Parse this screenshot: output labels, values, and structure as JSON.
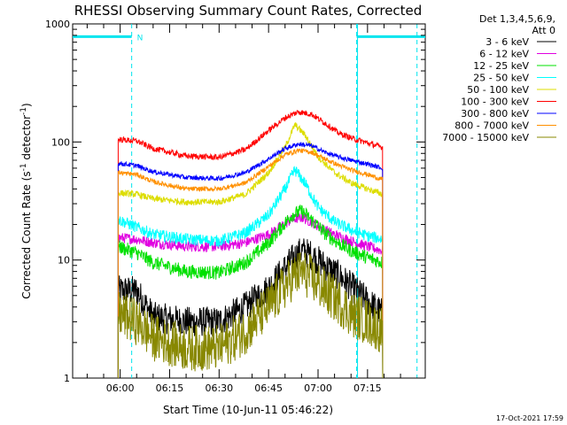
{
  "chart_data": {
    "type": "line",
    "title": "RHESSI Observing Summary Count Rates, Corrected",
    "xlabel": "Start Time (10-Jun-11 05:46:22)",
    "ylabel_main": "Corrected Count Rate (s",
    "ylabel_sup1": "-1",
    "ylabel_mid": " detector",
    "ylabel_sup2": "-1",
    "ylabel_end": ")",
    "y_scale": "log",
    "ylim": [
      1,
      1000
    ],
    "xlim_minutes": [
      -14.4,
      92.5
    ],
    "x_ticks": [
      {
        "m": 0,
        "label": "06:00"
      },
      {
        "m": 15,
        "label": "06:15"
      },
      {
        "m": 30,
        "label": "06:30"
      },
      {
        "m": 45,
        "label": "06:45"
      },
      {
        "m": 60,
        "label": "07:00"
      },
      {
        "m": 75,
        "label": "07:15"
      }
    ],
    "y_ticks": [
      {
        "v": 1,
        "label": "1"
      },
      {
        "v": 10,
        "label": "10"
      },
      {
        "v": 100,
        "label": "100"
      },
      {
        "v": 1000,
        "label": "1000"
      }
    ],
    "legend_header": [
      "Det 1,3,4,5,6,9,",
      "Att 0"
    ],
    "legend_position": "right",
    "data_start_minute": -0.6,
    "data_end_minute": 79.6,
    "flag_n_label": "N",
    "flags": [
      {
        "start": -14.4,
        "end": 3.5,
        "level": 780
      },
      {
        "start": 71.7,
        "end": 92.5,
        "level": 780
      }
    ],
    "flag_markers_minutes": [
      3.5,
      71.7,
      90.0
    ],
    "flag_color": "#00e5ee",
    "series": [
      {
        "name": "3 - 6 keV",
        "color": "#000000",
        "knots": [
          [
            -0.6,
            5.5
          ],
          [
            5,
            5.5
          ],
          [
            10,
            3.3
          ],
          [
            20,
            3
          ],
          [
            30,
            3
          ],
          [
            38,
            4
          ],
          [
            45,
            5.8
          ],
          [
            52,
            10
          ],
          [
            55,
            12
          ],
          [
            58,
            11
          ],
          [
            62,
            9
          ],
          [
            66,
            7.5
          ],
          [
            70,
            6
          ],
          [
            75,
            4.5
          ],
          [
            79.6,
            3.5
          ]
        ],
        "noise": 0.13
      },
      {
        "name": "6 - 12 keV",
        "color": "#e000e0",
        "knots": [
          [
            -0.6,
            15.5
          ],
          [
            5,
            15
          ],
          [
            10,
            14
          ],
          [
            20,
            13
          ],
          [
            30,
            13
          ],
          [
            38,
            14
          ],
          [
            45,
            16.5
          ],
          [
            52,
            22
          ],
          [
            55,
            23
          ],
          [
            58,
            21
          ],
          [
            62,
            18
          ],
          [
            66,
            16
          ],
          [
            70,
            14.5
          ],
          [
            75,
            13
          ],
          [
            79.6,
            12
          ]
        ],
        "noise": 0.045
      },
      {
        "name": "12 - 25 keV",
        "color": "#00e000",
        "knots": [
          [
            -0.6,
            13
          ],
          [
            5,
            11.5
          ],
          [
            10,
            9.5
          ],
          [
            20,
            8
          ],
          [
            30,
            7.8
          ],
          [
            38,
            9.5
          ],
          [
            45,
            14
          ],
          [
            52,
            24
          ],
          [
            55,
            26
          ],
          [
            58,
            22
          ],
          [
            62,
            17
          ],
          [
            66,
            14
          ],
          [
            70,
            12
          ],
          [
            75,
            10.5
          ],
          [
            79.6,
            9.5
          ]
        ],
        "noise": 0.06
      },
      {
        "name": "25 - 50 keV",
        "color": "#00ffff",
        "knots": [
          [
            -0.6,
            22
          ],
          [
            5,
            19
          ],
          [
            10,
            16.5
          ],
          [
            20,
            15
          ],
          [
            30,
            14.5
          ],
          [
            38,
            17
          ],
          [
            45,
            24
          ],
          [
            50,
            40
          ],
          [
            53,
            58
          ],
          [
            56,
            45
          ],
          [
            60,
            28
          ],
          [
            65,
            21
          ],
          [
            70,
            18
          ],
          [
            75,
            16
          ],
          [
            79.6,
            15
          ]
        ],
        "noise": 0.05
      },
      {
        "name": "50 - 100 keV",
        "color": "#dddd00",
        "knots": [
          [
            -0.6,
            37
          ],
          [
            5,
            36
          ],
          [
            10,
            33
          ],
          [
            20,
            31
          ],
          [
            30,
            31
          ],
          [
            38,
            36
          ],
          [
            45,
            55
          ],
          [
            50,
            90
          ],
          [
            53,
            140
          ],
          [
            56,
            115
          ],
          [
            60,
            75
          ],
          [
            65,
            55
          ],
          [
            70,
            45
          ],
          [
            75,
            40
          ],
          [
            79.6,
            36
          ]
        ],
        "noise": 0.028
      },
      {
        "name": "100 - 300 keV",
        "color": "#ff0000",
        "knots": [
          [
            -0.6,
            105
          ],
          [
            5,
            102
          ],
          [
            10,
            88
          ],
          [
            20,
            76
          ],
          [
            30,
            74
          ],
          [
            38,
            86
          ],
          [
            45,
            125
          ],
          [
            50,
            160
          ],
          [
            54,
            180
          ],
          [
            58,
            172
          ],
          [
            62,
            145
          ],
          [
            66,
            120
          ],
          [
            70,
            108
          ],
          [
            75,
            98
          ],
          [
            79.6,
            90
          ]
        ],
        "noise": 0.025
      },
      {
        "name": "300 - 800 keV",
        "color": "#0000ff",
        "knots": [
          [
            -0.6,
            66
          ],
          [
            5,
            63
          ],
          [
            10,
            56
          ],
          [
            20,
            50
          ],
          [
            30,
            49
          ],
          [
            38,
            55
          ],
          [
            45,
            72
          ],
          [
            50,
            88
          ],
          [
            54,
            96
          ],
          [
            58,
            93
          ],
          [
            62,
            82
          ],
          [
            66,
            75
          ],
          [
            70,
            70
          ],
          [
            75,
            65
          ],
          [
            79.6,
            60
          ]
        ],
        "noise": 0.02
      },
      {
        "name": "800 - 7000 keV",
        "color": "#ff9000",
        "knots": [
          [
            -0.6,
            55
          ],
          [
            5,
            53
          ],
          [
            10,
            46
          ],
          [
            20,
            40
          ],
          [
            30,
            40
          ],
          [
            38,
            45
          ],
          [
            45,
            62
          ],
          [
            50,
            78
          ],
          [
            54,
            85
          ],
          [
            58,
            82
          ],
          [
            62,
            72
          ],
          [
            66,
            64
          ],
          [
            70,
            58
          ],
          [
            75,
            53
          ],
          [
            79.6,
            48
          ]
        ],
        "noise": 0.02
      },
      {
        "name": "7000 - 15000 keV",
        "color": "#888800",
        "knots": [
          [
            -0.6,
            3.5
          ],
          [
            5,
            3
          ],
          [
            10,
            2.2
          ],
          [
            20,
            1.8
          ],
          [
            30,
            1.8
          ],
          [
            38,
            2.5
          ],
          [
            45,
            4
          ],
          [
            52,
            7
          ],
          [
            55,
            8
          ],
          [
            58,
            7
          ],
          [
            62,
            5.5
          ],
          [
            66,
            4.5
          ],
          [
            70,
            3.5
          ],
          [
            75,
            3
          ],
          [
            79.6,
            2.5
          ]
        ],
        "noise": 0.2
      }
    ]
  },
  "footer": {
    "timestamp": "17-Oct-2021 17:59"
  }
}
